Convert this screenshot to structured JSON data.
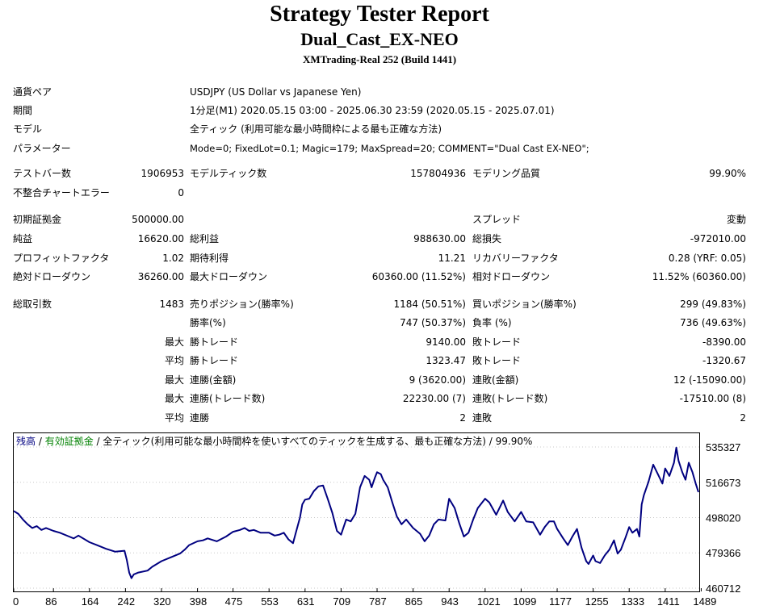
{
  "header": {
    "title": "Strategy Tester Report",
    "ea_name": "Dual_Cast_EX-NEO",
    "server": "XMTrading-Real 252 (Build 1441)"
  },
  "info": [
    {
      "label": "通貨ペア",
      "value": "USDJPY (US Dollar vs Japanese Yen)"
    },
    {
      "label": "期間",
      "value": "1分足(M1) 2020.05.15 03:00 - 2025.06.30 23:59 (2020.05.15 - 2025.07.01)"
    },
    {
      "label": "モデル",
      "value": "全ティック (利用可能な最小時間枠による最も正確な方法)"
    },
    {
      "label": "パラメーター",
      "value": "Mode=0; FixedLot=0.1; Magic=179; MaxSpread=20; COMMENT=\"Dual Cast EX-NEO\";"
    }
  ],
  "stats": {
    "test_bars_label": "テストバー数",
    "test_bars": "1906953",
    "model_ticks_label": "モデルティック数",
    "model_ticks": "157804936",
    "modeling_quality_label": "モデリング品質",
    "modeling_quality": "99.90%",
    "mismatch_label": "不整合チャートエラー",
    "mismatch": "0",
    "initial_deposit_label": "初期証拠金",
    "initial_deposit": "500000.00",
    "spread_label": "スプレッド",
    "spread": "変動",
    "net_profit_label": "純益",
    "net_profit": "16620.00",
    "gross_profit_label": "総利益",
    "gross_profit": "988630.00",
    "gross_loss_label": "総損失",
    "gross_loss": "-972010.00",
    "profit_factor_label": "プロフィットファクタ",
    "profit_factor": "1.02",
    "expected_payoff_label": "期待利得",
    "expected_payoff": "11.21",
    "recovery_factor_label": "リカバリーファクタ",
    "recovery_factor": "0.28 (YRF: 0.05)",
    "abs_dd_label": "絶対ドローダウン",
    "abs_dd": "36260.00",
    "max_dd_label": "最大ドローダウン",
    "max_dd": "60360.00 (11.52%)",
    "rel_dd_label": "相対ドローダウン",
    "rel_dd": "11.52% (60360.00)",
    "total_trades_label": "総取引数",
    "total_trades": "1483",
    "short_label": "売りポジション(勝率%)",
    "short": "1184 (50.51%)",
    "long_label": "買いポジション(勝率%)",
    "long": "299 (49.83%)",
    "win_pct_label": "勝率(%)",
    "win_pct": "747 (50.37%)",
    "loss_pct_label": "負率 (%)",
    "loss_pct": "736 (49.63%)",
    "max_prefix": "最大",
    "avg_prefix": "平均",
    "largest_win_label": "勝トレード",
    "largest_win": "9140.00",
    "largest_loss_label": "敗トレード",
    "largest_loss": "-8390.00",
    "avg_win_label": "勝トレード",
    "avg_win": "1323.47",
    "avg_loss_label": "敗トレード",
    "avg_loss": "-1320.67",
    "max_cons_win_amt_label": "連勝(金額)",
    "max_cons_win_amt": "9 (3620.00)",
    "max_cons_loss_amt_label": "連敗(金額)",
    "max_cons_loss_amt": "12 (-15090.00)",
    "max_cons_win_cnt_label": "連勝(トレード数)",
    "max_cons_win_cnt": "22230.00 (7)",
    "max_cons_loss_cnt_label": "連敗(トレード数)",
    "max_cons_loss_cnt": "-17510.00 (8)",
    "avg_cons_win_label": "連勝",
    "avg_cons_win": "2",
    "avg_cons_loss_label": "連敗",
    "avg_cons_loss": "2"
  },
  "chart_data": {
    "type": "line",
    "title_parts": {
      "balance": "残高",
      "sep1": " / ",
      "equity": "有効証拠金",
      "sep2": " / ",
      "rest": "全ティック(利用可能な最小時間枠を使いすべてのティックを生成する、最も正確な方法) / 99.90%"
    },
    "colors": {
      "line": "#000080",
      "balance_label": "#000080",
      "equity_label": "#008000"
    },
    "x_ticks": [
      "0",
      "86",
      "164",
      "242",
      "320",
      "398",
      "475",
      "553",
      "631",
      "709",
      "787",
      "865",
      "943",
      "1021",
      "1099",
      "1177",
      "1255",
      "1333",
      "1411",
      "1489"
    ],
    "y_ticks": [
      "535327",
      "516673",
      "498020",
      "479366",
      "460712"
    ],
    "xlim": [
      0,
      1483
    ],
    "ylim": [
      460712,
      535327
    ],
    "series": [
      {
        "values": [
          [
            0,
            501500
          ],
          [
            10,
            500000
          ],
          [
            20,
            497000
          ],
          [
            30,
            494500
          ],
          [
            40,
            492500
          ],
          [
            50,
            493500
          ],
          [
            60,
            491500
          ],
          [
            70,
            492500
          ],
          [
            86,
            491000
          ],
          [
            100,
            490000
          ],
          [
            120,
            488000
          ],
          [
            130,
            487000
          ],
          [
            140,
            488500
          ],
          [
            164,
            485000
          ],
          [
            180,
            483500
          ],
          [
            200,
            481500
          ],
          [
            220,
            480000
          ],
          [
            240,
            480500
          ],
          [
            245,
            475500
          ],
          [
            250,
            469000
          ],
          [
            255,
            466000
          ],
          [
            260,
            468000
          ],
          [
            270,
            469000
          ],
          [
            290,
            470000
          ],
          [
            300,
            472000
          ],
          [
            320,
            475000
          ],
          [
            340,
            477000
          ],
          [
            360,
            479000
          ],
          [
            370,
            481000
          ],
          [
            380,
            483500
          ],
          [
            398,
            485500
          ],
          [
            410,
            486000
          ],
          [
            420,
            487000
          ],
          [
            440,
            485500
          ],
          [
            460,
            488000
          ],
          [
            475,
            490500
          ],
          [
            490,
            491500
          ],
          [
            500,
            492500
          ],
          [
            510,
            491000
          ],
          [
            520,
            491500
          ],
          [
            535,
            490000
          ],
          [
            553,
            490000
          ],
          [
            565,
            488500
          ],
          [
            575,
            489000
          ],
          [
            585,
            490000
          ],
          [
            595,
            486500
          ],
          [
            605,
            484500
          ],
          [
            612,
            491000
          ],
          [
            620,
            498000
          ],
          [
            625,
            505000
          ],
          [
            631,
            507500
          ],
          [
            640,
            508000
          ],
          [
            650,
            512000
          ],
          [
            660,
            514500
          ],
          [
            670,
            515000
          ],
          [
            680,
            508000
          ],
          [
            690,
            500500
          ],
          [
            700,
            491000
          ],
          [
            709,
            489000
          ],
          [
            720,
            497000
          ],
          [
            730,
            496000
          ],
          [
            740,
            500000
          ],
          [
            750,
            514000
          ],
          [
            760,
            520000
          ],
          [
            770,
            518000
          ],
          [
            775,
            514000
          ],
          [
            782,
            519000
          ],
          [
            787,
            522000
          ],
          [
            795,
            521000
          ],
          [
            800,
            518000
          ],
          [
            810,
            514000
          ],
          [
            820,
            506000
          ],
          [
            830,
            498500
          ],
          [
            840,
            494500
          ],
          [
            850,
            497000
          ],
          [
            865,
            492500
          ],
          [
            880,
            489500
          ],
          [
            890,
            485500
          ],
          [
            900,
            488500
          ],
          [
            910,
            494500
          ],
          [
            920,
            497000
          ],
          [
            935,
            496500
          ],
          [
            943,
            508000
          ],
          [
            955,
            503000
          ],
          [
            965,
            495000
          ],
          [
            975,
            488000
          ],
          [
            985,
            490000
          ],
          [
            995,
            497000
          ],
          [
            1005,
            503000
          ],
          [
            1021,
            508000
          ],
          [
            1030,
            506000
          ],
          [
            1045,
            499500
          ],
          [
            1060,
            507000
          ],
          [
            1070,
            501000
          ],
          [
            1085,
            496000
          ],
          [
            1099,
            501000
          ],
          [
            1110,
            496000
          ],
          [
            1125,
            495500
          ],
          [
            1140,
            489000
          ],
          [
            1150,
            493000
          ],
          [
            1160,
            496000
          ],
          [
            1170,
            496000
          ],
          [
            1177,
            492000
          ],
          [
            1190,
            487000
          ],
          [
            1200,
            483500
          ],
          [
            1210,
            488000
          ],
          [
            1220,
            492000
          ],
          [
            1230,
            482000
          ],
          [
            1240,
            475000
          ],
          [
            1245,
            473500
          ],
          [
            1255,
            478000
          ],
          [
            1260,
            475000
          ],
          [
            1270,
            474000
          ],
          [
            1280,
            478000
          ],
          [
            1290,
            481000
          ],
          [
            1300,
            486000
          ],
          [
            1308,
            479000
          ],
          [
            1315,
            481000
          ],
          [
            1325,
            487500
          ],
          [
            1333,
            493000
          ],
          [
            1340,
            490000
          ],
          [
            1350,
            492000
          ],
          [
            1355,
            488000
          ],
          [
            1360,
            505000
          ],
          [
            1365,
            510000
          ],
          [
            1375,
            517000
          ],
          [
            1385,
            526000
          ],
          [
            1395,
            521000
          ],
          [
            1405,
            516000
          ],
          [
            1411,
            524000
          ],
          [
            1420,
            520000
          ],
          [
            1430,
            527000
          ],
          [
            1435,
            535000
          ],
          [
            1440,
            528000
          ],
          [
            1448,
            522000
          ],
          [
            1455,
            518000
          ],
          [
            1462,
            527000
          ],
          [
            1470,
            522000
          ],
          [
            1477,
            516000
          ],
          [
            1483,
            511500
          ]
        ]
      }
    ]
  }
}
